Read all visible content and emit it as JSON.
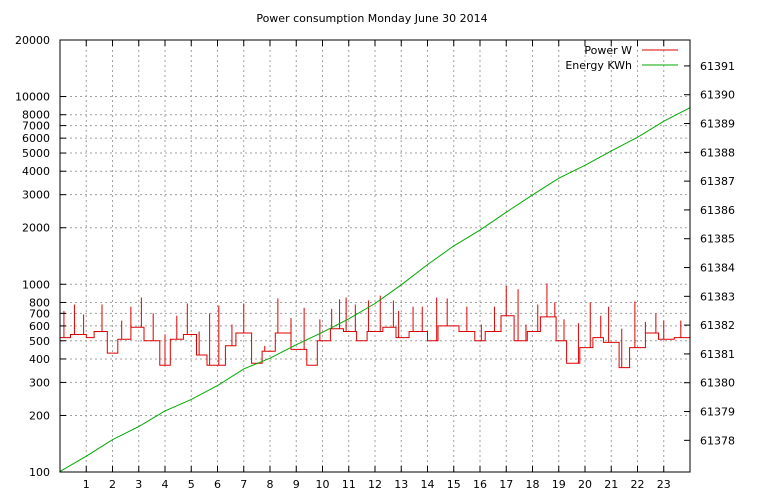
{
  "chart_data": {
    "type": "line",
    "title": "Power consumption Monday June 30 2014",
    "xlabel": "",
    "ylabel": "",
    "y2label": "",
    "grid": true,
    "legend_position": "top-right",
    "xlim": [
      0,
      24
    ],
    "x_ticks": [
      1,
      2,
      3,
      4,
      5,
      6,
      7,
      8,
      9,
      10,
      11,
      12,
      13,
      14,
      15,
      16,
      17,
      18,
      19,
      20,
      21,
      22,
      23
    ],
    "y_scale": "log",
    "ylim": [
      100,
      20000
    ],
    "y_ticks": [
      100,
      200,
      300,
      400,
      500,
      600,
      700,
      800,
      1000,
      2000,
      3000,
      4000,
      5000,
      6000,
      7000,
      8000,
      10000,
      20000
    ],
    "y2lim": [
      61376.9,
      61391.9
    ],
    "y2_ticks": [
      61378,
      61379,
      61380,
      61381,
      61382,
      61383,
      61384,
      61385,
      61386,
      61387,
      61388,
      61389,
      61390,
      61391
    ],
    "series": [
      {
        "name": "Power W",
        "axis": "y",
        "color": "#dd0000",
        "step_levels": [
          [
            0,
            520
          ],
          [
            0.4,
            540
          ],
          [
            1.0,
            520
          ],
          [
            1.3,
            560
          ],
          [
            1.8,
            430
          ],
          [
            2.2,
            510
          ],
          [
            2.7,
            590
          ],
          [
            3.2,
            500
          ],
          [
            3.8,
            370
          ],
          [
            4.2,
            510
          ],
          [
            4.7,
            540
          ],
          [
            5.2,
            420
          ],
          [
            5.6,
            370
          ],
          [
            6.3,
            470
          ],
          [
            6.7,
            550
          ],
          [
            7.3,
            380
          ],
          [
            7.7,
            440
          ],
          [
            8.2,
            550
          ],
          [
            8.8,
            450
          ],
          [
            9.4,
            370
          ],
          [
            9.8,
            500
          ],
          [
            10.3,
            580
          ],
          [
            10.8,
            560
          ],
          [
            11.3,
            500
          ],
          [
            11.7,
            560
          ],
          [
            12.3,
            590
          ],
          [
            12.8,
            520
          ],
          [
            13.3,
            560
          ],
          [
            14.0,
            500
          ],
          [
            14.4,
            600
          ],
          [
            15.2,
            560
          ],
          [
            15.8,
            500
          ],
          [
            16.2,
            560
          ],
          [
            16.8,
            680
          ],
          [
            17.3,
            500
          ],
          [
            17.8,
            560
          ],
          [
            18.3,
            670
          ],
          [
            18.9,
            500
          ],
          [
            19.3,
            380
          ],
          [
            19.8,
            460
          ],
          [
            20.3,
            520
          ],
          [
            20.7,
            490
          ],
          [
            21.3,
            360
          ],
          [
            21.7,
            460
          ],
          [
            22.3,
            550
          ],
          [
            22.8,
            510
          ],
          [
            23.4,
            520
          ],
          [
            24.0,
            520
          ]
        ],
        "spikes": [
          [
            0.15,
            720
          ],
          [
            0.55,
            780
          ],
          [
            0.9,
            690
          ],
          [
            1.6,
            780
          ],
          [
            2.35,
            640
          ],
          [
            2.7,
            760
          ],
          [
            3.1,
            850
          ],
          [
            3.55,
            700
          ],
          [
            4.0,
            540
          ],
          [
            4.45,
            680
          ],
          [
            4.85,
            790
          ],
          [
            5.3,
            560
          ],
          [
            5.7,
            700
          ],
          [
            6.05,
            770
          ],
          [
            6.55,
            610
          ],
          [
            7.0,
            790
          ],
          [
            7.8,
            470
          ],
          [
            8.3,
            840
          ],
          [
            8.8,
            660
          ],
          [
            9.3,
            750
          ],
          [
            9.9,
            650
          ],
          [
            10.35,
            740
          ],
          [
            10.65,
            830
          ],
          [
            10.9,
            850
          ],
          [
            11.25,
            780
          ],
          [
            11.75,
            820
          ],
          [
            12.2,
            870
          ],
          [
            12.7,
            820
          ],
          [
            12.9,
            720
          ],
          [
            13.45,
            760
          ],
          [
            13.8,
            760
          ],
          [
            14.35,
            850
          ],
          [
            14.75,
            840
          ],
          [
            15.5,
            760
          ],
          [
            16.05,
            610
          ],
          [
            16.55,
            760
          ],
          [
            17.0,
            980
          ],
          [
            17.45,
            940
          ],
          [
            17.75,
            610
          ],
          [
            18.2,
            780
          ],
          [
            18.55,
            1010
          ],
          [
            18.85,
            800
          ],
          [
            19.2,
            650
          ],
          [
            19.75,
            620
          ],
          [
            20.2,
            800
          ],
          [
            20.6,
            680
          ],
          [
            20.9,
            760
          ],
          [
            21.4,
            580
          ],
          [
            21.9,
            810
          ],
          [
            22.3,
            630
          ],
          [
            22.7,
            700
          ],
          [
            23.0,
            640
          ],
          [
            23.65,
            640
          ]
        ]
      },
      {
        "name": "Energy KWh",
        "axis": "y2",
        "color": "#00aa00",
        "points": [
          [
            0,
            61376.92
          ],
          [
            1,
            61377.45
          ],
          [
            2,
            61378.02
          ],
          [
            3,
            61378.48
          ],
          [
            4,
            61379.02
          ],
          [
            5,
            61379.42
          ],
          [
            6,
            61379.9
          ],
          [
            7,
            61380.48
          ],
          [
            8,
            61380.85
          ],
          [
            9,
            61381.32
          ],
          [
            10,
            61381.75
          ],
          [
            11,
            61382.22
          ],
          [
            12,
            61382.75
          ],
          [
            13,
            61383.4
          ],
          [
            14,
            61384.1
          ],
          [
            15,
            61384.75
          ],
          [
            16,
            61385.3
          ],
          [
            17,
            61385.92
          ],
          [
            18,
            61386.52
          ],
          [
            19,
            61387.1
          ],
          [
            20,
            61387.55
          ],
          [
            21,
            61388.05
          ],
          [
            22,
            61388.52
          ],
          [
            23,
            61389.08
          ],
          [
            24,
            61389.55
          ]
        ]
      }
    ]
  }
}
